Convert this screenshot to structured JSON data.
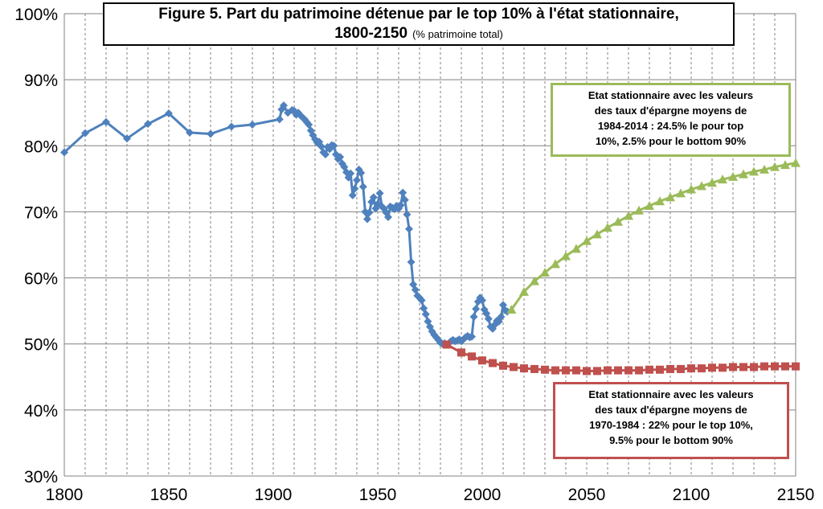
{
  "title": {
    "line1": "Figure 5. Part du patrimoine détenue par le top 10% à l'état stationnaire,",
    "line2": "1800-2150",
    "subtitle": "(% patrimoine total)"
  },
  "annotations": {
    "green": [
      "Etat stationnaire avec les valeurs",
      "des taux d'épargne moyens  de",
      "1984-2014 : 24.5%  le pour top",
      "10%,  2.5%  pour le bottom  90%"
    ],
    "red": [
      "Etat stationnaire avec les valeurs",
      "des taux d'épargne moyens  de",
      "1970-1984 : 22%  pour le top 10%,",
      "9.5%  pour le bottom  90%"
    ]
  },
  "colors": {
    "historical": "#4f81bd",
    "green": "#9bbb59",
    "red": "#c0504d",
    "grid": "#808080"
  },
  "chart_data": {
    "type": "line",
    "title": "Figure 5. Part du patrimoine détenue par le top 10% à l'état stationnaire, 1800-2150",
    "subtitle": "(% patrimoine total)",
    "xlabel": "",
    "ylabel": "",
    "xlim": [
      1800,
      2150
    ],
    "ylim": [
      30,
      100
    ],
    "x_ticks": [
      1800,
      1850,
      1900,
      1950,
      2000,
      2050,
      2100,
      2150
    ],
    "y_ticks": [
      30,
      40,
      50,
      60,
      70,
      80,
      90,
      100
    ],
    "y_tick_labels": [
      "30%",
      "40%",
      "50%",
      "60%",
      "70%",
      "80%",
      "90%",
      "100%"
    ],
    "grid": "vertical every 10 years (dashed), horizontal at every 10%",
    "series": [
      {
        "marker": "diamond",
        "color": "#4f81bd",
        "points": [
          [
            1800,
            79.0
          ],
          [
            1810,
            81.9
          ],
          [
            1820,
            83.6
          ],
          [
            1830,
            81.1
          ],
          [
            1840,
            83.3
          ],
          [
            1850,
            84.9
          ],
          [
            1860,
            82.0
          ],
          [
            1870,
            81.8
          ],
          [
            1880,
            82.9
          ],
          [
            1890,
            83.2
          ],
          [
            1903,
            84.0
          ],
          [
            1904,
            85.5
          ],
          [
            1905,
            86.1
          ],
          [
            1907,
            85.0
          ],
          [
            1909,
            85.4
          ],
          [
            1910,
            85.3
          ],
          [
            1911,
            84.7
          ],
          [
            1912,
            85.0
          ],
          [
            1913,
            84.6
          ],
          [
            1914,
            84.3
          ],
          [
            1915,
            84.0
          ],
          [
            1916,
            83.6
          ],
          [
            1917,
            83.2
          ],
          [
            1918,
            82.3
          ],
          [
            1919,
            81.6
          ],
          [
            1920,
            81.0
          ],
          [
            1921,
            80.5
          ],
          [
            1922,
            80.6
          ],
          [
            1923,
            79.9
          ],
          [
            1924,
            79.0
          ],
          [
            1925,
            78.7
          ],
          [
            1926,
            79.8
          ],
          [
            1927,
            79.5
          ],
          [
            1928,
            80.1
          ],
          [
            1929,
            80.0
          ],
          [
            1930,
            78.7
          ],
          [
            1931,
            78.0
          ],
          [
            1932,
            78.3
          ],
          [
            1933,
            77.3
          ],
          [
            1934,
            76.8
          ],
          [
            1935,
            76.0
          ],
          [
            1936,
            75.2
          ],
          [
            1937,
            75.8
          ],
          [
            1938,
            72.5
          ],
          [
            1939,
            73.5
          ],
          [
            1940,
            74.8
          ],
          [
            1941,
            76.4
          ],
          [
            1942,
            75.9
          ],
          [
            1943,
            73.8
          ],
          [
            1944,
            70.0
          ],
          [
            1945,
            68.9
          ],
          [
            1946,
            69.9
          ],
          [
            1947,
            71.5
          ],
          [
            1948,
            72.2
          ],
          [
            1949,
            70.5
          ],
          [
            1950,
            71.2
          ],
          [
            1951,
            72.8
          ],
          [
            1952,
            70.8
          ],
          [
            1953,
            70.5
          ],
          [
            1954,
            69.9
          ],
          [
            1955,
            69.2
          ],
          [
            1956,
            70.8
          ],
          [
            1957,
            70.6
          ],
          [
            1958,
            70.4
          ],
          [
            1959,
            70.9
          ],
          [
            1960,
            70.5
          ],
          [
            1961,
            71.0
          ],
          [
            1962,
            72.9
          ],
          [
            1963,
            71.8
          ],
          [
            1964,
            69.6
          ],
          [
            1965,
            67.4
          ],
          [
            1966,
            62.4
          ],
          [
            1967,
            59.0
          ],
          [
            1968,
            58.2
          ],
          [
            1969,
            57.3
          ],
          [
            1970,
            57.0
          ],
          [
            1971,
            56.6
          ],
          [
            1972,
            55.4
          ],
          [
            1973,
            54.5
          ],
          [
            1974,
            53.4
          ],
          [
            1975,
            52.6
          ],
          [
            1976,
            51.9
          ],
          [
            1977,
            51.4
          ],
          [
            1978,
            51.0
          ],
          [
            1979,
            50.6
          ],
          [
            1980,
            50.2
          ],
          [
            1981,
            50.0
          ],
          [
            1982,
            50.1
          ],
          [
            1983,
            49.9
          ],
          [
            1984,
            50.1
          ],
          [
            1985,
            50.4
          ],
          [
            1986,
            50.6
          ],
          [
            1987,
            50.4
          ],
          [
            1988,
            50.5
          ],
          [
            1989,
            50.7
          ],
          [
            1990,
            50.4
          ],
          [
            1991,
            50.7
          ],
          [
            1992,
            51.0
          ],
          [
            1993,
            51.2
          ],
          [
            1994,
            51.0
          ],
          [
            1995,
            51.1
          ],
          [
            1996,
            54.1
          ],
          [
            1997,
            55.3
          ],
          [
            1998,
            56.4
          ],
          [
            1999,
            57.0
          ],
          [
            2000,
            56.6
          ],
          [
            2001,
            55.2
          ],
          [
            2002,
            54.6
          ],
          [
            2003,
            53.8
          ],
          [
            2004,
            52.6
          ],
          [
            2005,
            52.3
          ],
          [
            2006,
            52.9
          ],
          [
            2007,
            53.5
          ],
          [
            2008,
            53.4
          ],
          [
            2009,
            54.1
          ],
          [
            2010,
            55.9
          ],
          [
            2011,
            55.1
          ],
          [
            2012,
            54.9
          ]
        ]
      },
      {
        "marker": "triangle",
        "color": "#9bbb59",
        "points": [
          [
            2014,
            55.2
          ],
          [
            2020,
            57.9
          ],
          [
            2025,
            59.5
          ],
          [
            2030,
            60.8
          ],
          [
            2035,
            62.1
          ],
          [
            2040,
            63.3
          ],
          [
            2045,
            64.4
          ],
          [
            2050,
            65.6
          ],
          [
            2055,
            66.6
          ],
          [
            2060,
            67.6
          ],
          [
            2065,
            68.5
          ],
          [
            2070,
            69.4
          ],
          [
            2075,
            70.2
          ],
          [
            2080,
            70.9
          ],
          [
            2085,
            71.6
          ],
          [
            2090,
            72.2
          ],
          [
            2095,
            72.8
          ],
          [
            2100,
            73.4
          ],
          [
            2105,
            73.9
          ],
          [
            2110,
            74.4
          ],
          [
            2115,
            74.9
          ],
          [
            2120,
            75.3
          ],
          [
            2125,
            75.7
          ],
          [
            2130,
            76.1
          ],
          [
            2135,
            76.4
          ],
          [
            2140,
            76.8
          ],
          [
            2145,
            77.1
          ],
          [
            2150,
            77.4
          ]
        ]
      },
      {
        "marker": "square",
        "color": "#c0504d",
        "points": [
          [
            1983,
            49.9
          ],
          [
            1990,
            48.7
          ],
          [
            1995,
            48.1
          ],
          [
            2000,
            47.5
          ],
          [
            2005,
            47.1
          ],
          [
            2010,
            46.7
          ],
          [
            2015,
            46.5
          ],
          [
            2020,
            46.3
          ],
          [
            2025,
            46.2
          ],
          [
            2030,
            46.1
          ],
          [
            2035,
            46.0
          ],
          [
            2040,
            46.0
          ],
          [
            2045,
            46.0
          ],
          [
            2050,
            45.9
          ],
          [
            2055,
            45.9
          ],
          [
            2060,
            46.0
          ],
          [
            2065,
            46.0
          ],
          [
            2070,
            46.0
          ],
          [
            2075,
            46.0
          ],
          [
            2080,
            46.1
          ],
          [
            2085,
            46.1
          ],
          [
            2090,
            46.2
          ],
          [
            2095,
            46.2
          ],
          [
            2100,
            46.3
          ],
          [
            2105,
            46.3
          ],
          [
            2110,
            46.4
          ],
          [
            2115,
            46.4
          ],
          [
            2120,
            46.5
          ],
          [
            2125,
            46.5
          ],
          [
            2130,
            46.5
          ],
          [
            2135,
            46.6
          ],
          [
            2140,
            46.6
          ],
          [
            2145,
            46.6
          ],
          [
            2150,
            46.6
          ]
        ]
      }
    ]
  }
}
